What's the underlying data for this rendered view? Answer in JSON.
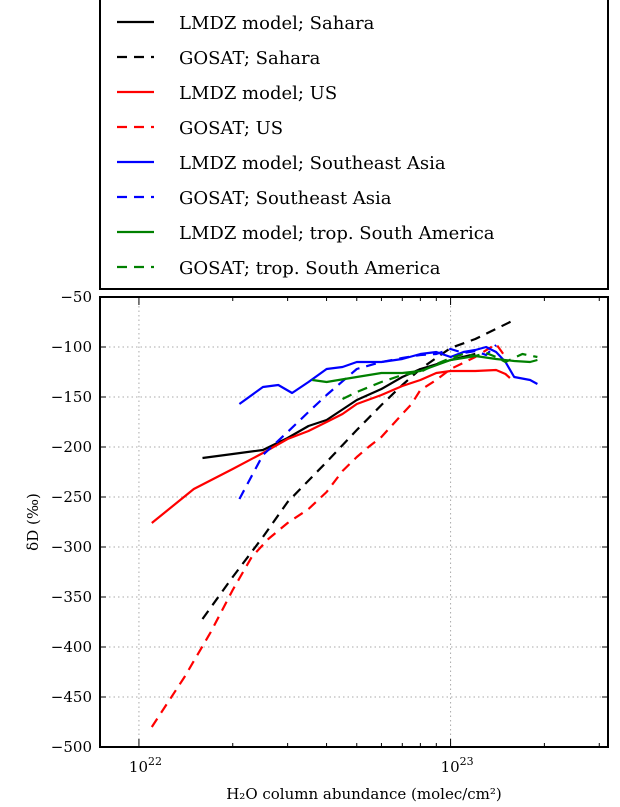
{
  "chart_data": {
    "type": "line",
    "title": "",
    "xlabel": "H₂O column abundance (molec/cm²)",
    "ylabel": "δD (‰)",
    "xscale": "log",
    "xlim": [
      7.5e+21,
      3.2e+23
    ],
    "ylim": [
      -500,
      -50
    ],
    "grid": true,
    "legend_position": "upper-left, outside above plot",
    "y_ticks": [
      -50,
      -100,
      -150,
      -200,
      -250,
      -300,
      -350,
      -400,
      -450,
      -500
    ],
    "y_tick_labels": [
      "−50",
      "−100",
      "−150",
      "−200",
      "−250",
      "−300",
      "−350",
      "−400",
      "−450",
      "−500"
    ],
    "x_ticks": [
      {
        "value": 1e+22,
        "base": "10",
        "exp": "22"
      },
      {
        "value": 1e+23,
        "base": "10",
        "exp": "23"
      }
    ],
    "series": [
      {
        "name": "LMDZ model; Sahara",
        "color": "#000000",
        "dash": "solid",
        "x": [
          1.6e+22,
          2e+22,
          2.5e+22,
          3e+22,
          3.5e+22,
          4e+22,
          5e+22,
          6e+22,
          7e+22,
          8e+22,
          1e+23,
          1.2e+23
        ],
        "y": [
          -211,
          -207,
          -203,
          -191,
          -179,
          -173,
          -153,
          -142,
          -130,
          -122,
          -113,
          -107
        ]
      },
      {
        "name": "GOSAT; Sahara",
        "color": "#000000",
        "dash": "dashed",
        "x": [
          1.6e+22,
          2e+22,
          2.5e+22,
          3e+22,
          4e+22,
          5e+22,
          6e+22,
          7e+22,
          8e+22,
          1e+23,
          1.2e+23,
          1.6e+23
        ],
        "y": [
          -372,
          -330,
          -290,
          -255,
          -215,
          -183,
          -158,
          -138,
          -122,
          -101,
          -92,
          -73
        ]
      },
      {
        "name": "LMDZ model; US",
        "color": "#ff0000",
        "dash": "solid",
        "x": [
          1.1e+22,
          1.5e+22,
          2e+22,
          2.5e+22,
          3e+22,
          3.5e+22,
          4e+22,
          4.5e+22,
          5e+22,
          6e+22,
          7e+22,
          8e+22,
          9e+22,
          1e+23,
          1.2e+23,
          1.4e+23,
          1.5e+23,
          1.55e+23
        ],
        "y": [
          -276,
          -242,
          -222,
          -206,
          -192,
          -184,
          -175,
          -167,
          -157,
          -148,
          -139,
          -133,
          -126,
          -124,
          -124,
          -123,
          -127,
          -131
        ]
      },
      {
        "name": "GOSAT; US",
        "color": "#ff0000",
        "dash": "dashed",
        "x": [
          1.1e+22,
          1.4e+22,
          1.7e+22,
          2e+22,
          2.3e+22,
          2.6e+22,
          3e+22,
          3.5e+22,
          4e+22,
          4.5e+22,
          5e+22,
          5.5e+22,
          6e+22,
          7e+22,
          7.5e+22,
          8e+22,
          9e+22,
          1e+23,
          1.2e+23,
          1.4e+23,
          1.5e+23
        ],
        "y": [
          -480,
          -430,
          -385,
          -343,
          -310,
          -292,
          -276,
          -262,
          -245,
          -224,
          -210,
          -199,
          -190,
          -167,
          -157,
          -143,
          -133,
          -122,
          -110,
          -97,
          -110
        ]
      },
      {
        "name": "LMDZ model; Southeast Asia",
        "color": "#0000ff",
        "dash": "solid",
        "x": [
          2.1e+22,
          2.5e+22,
          2.8e+22,
          3.1e+22,
          3.5e+22,
          4e+22,
          4.5e+22,
          5e+22,
          6e+22,
          7e+22,
          8e+22,
          9e+22,
          1e+23,
          1.1e+23,
          1.2e+23,
          1.3e+23,
          1.4e+23,
          1.5e+23,
          1.6e+23,
          1.8e+23,
          1.9e+23
        ],
        "y": [
          -157,
          -140,
          -138,
          -146,
          -135,
          -122,
          -120,
          -115,
          -115,
          -112,
          -107,
          -105,
          -110,
          -105,
          -103,
          -100,
          -105,
          -115,
          -130,
          -133,
          -137
        ]
      },
      {
        "name": "GOSAT; Southeast Asia",
        "color": "#0000ff",
        "dash": "dashed",
        "x": [
          2.1e+22,
          2.5e+22,
          3e+22,
          3.5e+22,
          4e+22,
          5e+22,
          6e+22,
          7e+22,
          8e+22,
          9e+22,
          1e+23,
          1.1e+23,
          1.2e+23,
          1.3e+23,
          1.4e+23
        ],
        "y": [
          -252,
          -208,
          -185,
          -165,
          -148,
          -122,
          -115,
          -111,
          -108,
          -107,
          -102,
          -106,
          -104,
          -108,
          -98
        ]
      },
      {
        "name": "LMDZ model; trop. South America",
        "color": "#008000",
        "dash": "solid",
        "x": [
          3.6e+22,
          4e+22,
          5e+22,
          6e+22,
          7e+22,
          8e+22,
          1e+23,
          1.2e+23,
          1.4e+23,
          1.6e+23,
          1.8e+23,
          1.9e+23
        ],
        "y": [
          -133,
          -135,
          -130,
          -126,
          -126,
          -124,
          -113,
          -109,
          -112,
          -114,
          -115,
          -113
        ]
      },
      {
        "name": "GOSAT; trop. South America",
        "color": "#008000",
        "dash": "dashed",
        "x": [
          4.5e+22,
          5e+22,
          6e+22,
          7e+22,
          8e+22,
          9e+22,
          1e+23,
          1.1e+23,
          1.2e+23,
          1.3e+23,
          1.4e+23,
          1.5e+23,
          1.7e+23,
          1.9e+23
        ],
        "y": [
          -152,
          -145,
          -135,
          -128,
          -125,
          -117,
          -111,
          -107,
          -109,
          -106,
          -110,
          -115,
          -107,
          -110
        ]
      }
    ]
  }
}
